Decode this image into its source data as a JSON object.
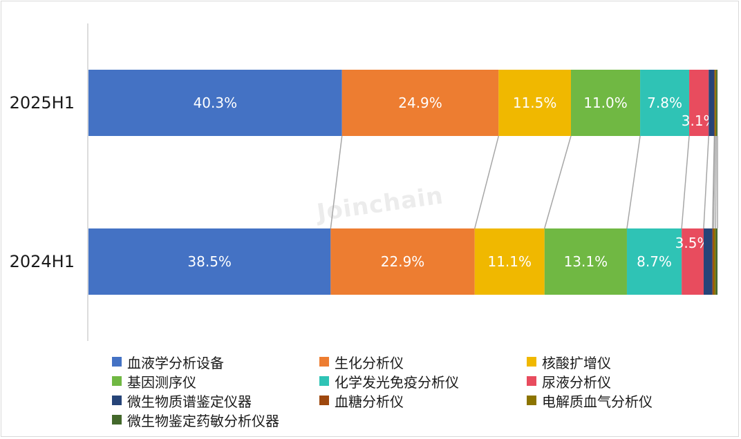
{
  "watermark": "Joinchain",
  "chart_data": {
    "type": "bar",
    "orientation": "horizontal",
    "stacked": "percent",
    "categories": [
      "2025H1",
      "2024H1"
    ],
    "series": [
      {
        "name": "血液学分析设备",
        "color": "#4472C4",
        "values": [
          40.3,
          38.5
        ],
        "labels": [
          "40.3%",
          "38.5%"
        ]
      },
      {
        "name": "生化分析仪",
        "color": "#ED7D31",
        "values": [
          24.9,
          22.9
        ],
        "labels": [
          "24.9%",
          "22.9%"
        ]
      },
      {
        "name": "核酸扩增仪",
        "color": "#F0B800",
        "values": [
          11.5,
          11.1
        ],
        "labels": [
          "11.5%",
          "11.1%"
        ]
      },
      {
        "name": "基因测序仪",
        "color": "#70B843",
        "values": [
          11.0,
          13.1
        ],
        "labels": [
          "11.0%",
          "13.1%"
        ]
      },
      {
        "name": "化学发光免疫分析仪",
        "color": "#2FC3B5",
        "values": [
          7.8,
          8.7
        ],
        "labels": [
          "7.8%",
          "8.7%"
        ]
      },
      {
        "name": "尿液分析仪",
        "color": "#E84C5E",
        "values": [
          3.1,
          3.5
        ],
        "labels": [
          "3.1%",
          "3.5%"
        ]
      },
      {
        "name": "微生物质谱鉴定仪器",
        "color": "#264478",
        "values": [
          0.9,
          1.4
        ],
        "labels": [
          "",
          ""
        ]
      },
      {
        "name": "血糖分析仪",
        "color": "#9E480E",
        "values": [
          0.1,
          0.2
        ],
        "labels": [
          "",
          ""
        ]
      },
      {
        "name": "电解质血气分析仪",
        "color": "#8C7400",
        "values": [
          0.2,
          0.3
        ],
        "labels": [
          "",
          ""
        ]
      },
      {
        "name": "微生物鉴定药敏分析仪器",
        "color": "#43682B",
        "values": [
          0.2,
          0.3
        ],
        "labels": [
          "",
          ""
        ]
      }
    ],
    "xlim": [
      0,
      100
    ],
    "grid": false,
    "series_lines": true,
    "legend_position": "bottom"
  }
}
